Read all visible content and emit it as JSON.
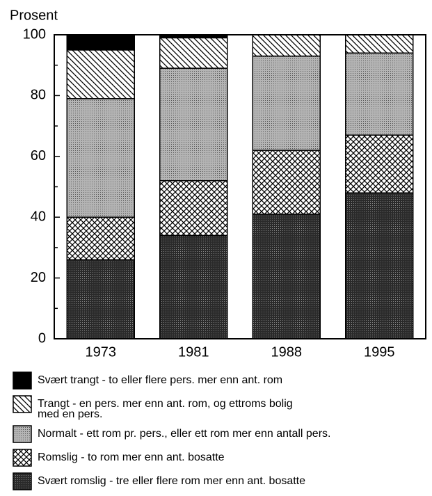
{
  "chart_data": {
    "type": "stacked-bar",
    "title": "Prosent",
    "categories": [
      "1973",
      "1981",
      "1988",
      "1995"
    ],
    "series": [
      {
        "name": "Svært trangt - to eller flere pers. mer enn ant. rom",
        "color": "#000000",
        "pattern": "solid",
        "values": [
          5,
          1,
          0,
          0
        ]
      },
      {
        "name": "Trangt - en pers. mer enn ant. rom, og ettroms bolig\nmed en pers.",
        "color": "#000000",
        "pattern": "diagonal",
        "values": [
          16,
          10,
          7,
          6
        ]
      },
      {
        "name": "Normalt - ett rom pr. pers., eller ett rom mer enn antall pers.",
        "color": "#b4b4b4",
        "pattern": "dots",
        "values": [
          39,
          37,
          31,
          27
        ]
      },
      {
        "name": "Romslig - to rom mer enn ant. bosatte",
        "color": "#000000",
        "pattern": "crosshatch",
        "values": [
          14,
          18,
          21,
          19
        ]
      },
      {
        "name": "Svært romslig - tre eller flere rom mer enn ant. bosatte",
        "color": "#2a2a2a",
        "pattern": "dense-dots",
        "values": [
          26,
          34,
          41,
          48
        ]
      }
    ],
    "ylim": [
      0,
      100
    ],
    "yticks": [
      0,
      20,
      40,
      60,
      80,
      100
    ],
    "minor_yticks": [
      10,
      30,
      50,
      70,
      90
    ]
  }
}
